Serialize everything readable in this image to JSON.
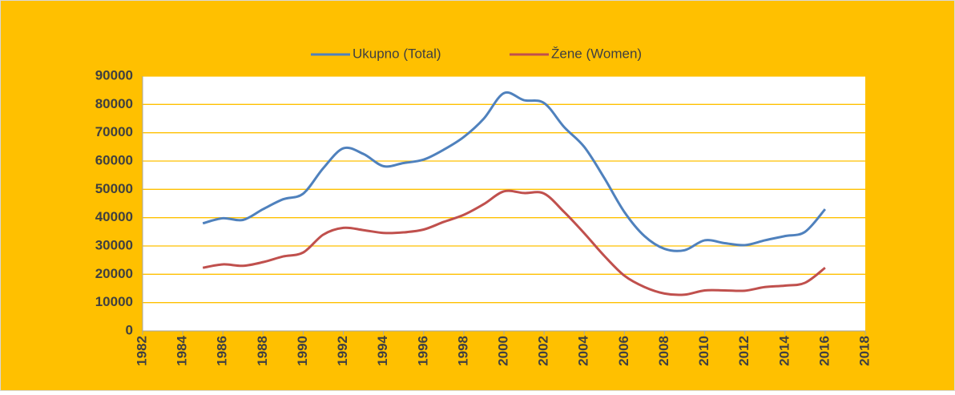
{
  "chart_data": {
    "type": "line",
    "x": [
      1985,
      1986,
      1987,
      1988,
      1989,
      1990,
      1991,
      1992,
      1993,
      1994,
      1995,
      1996,
      1997,
      1998,
      1999,
      2000,
      2001,
      2002,
      2003,
      2004,
      2005,
      2006,
      2007,
      2008,
      2009,
      2010,
      2011,
      2012,
      2013,
      2014,
      2015,
      2016
    ],
    "series": [
      {
        "name": "Ukupno (Total)",
        "color": "#4F81BD",
        "values": [
          38000,
          39800,
          39200,
          43000,
          46500,
          48500,
          57500,
          64500,
          62500,
          58200,
          59300,
          60500,
          64000,
          68500,
          75000,
          84000,
          81500,
          80500,
          72000,
          65000,
          54000,
          42000,
          33500,
          29000,
          28500,
          32000,
          31000,
          30300,
          32000,
          33500,
          35000,
          43000
        ]
      },
      {
        "name": "Žene (Women)",
        "color": "#C0504D",
        "values": [
          22300,
          23500,
          23000,
          24300,
          26300,
          27700,
          34000,
          36400,
          35600,
          34600,
          34800,
          35800,
          38500,
          41000,
          44800,
          49300,
          48700,
          48500,
          42000,
          34500,
          26500,
          19500,
          15500,
          13200,
          12800,
          14300,
          14300,
          14200,
          15500,
          16000,
          17000,
          22300
        ]
      }
    ],
    "xlim": [
      1982,
      2018
    ],
    "xticks": [
      1982,
      1984,
      1986,
      1988,
      1990,
      1992,
      1994,
      1996,
      1998,
      2000,
      2002,
      2004,
      2006,
      2008,
      2010,
      2012,
      2014,
      2016,
      2018
    ],
    "ylim": [
      0,
      90000
    ],
    "yticks": [
      0,
      10000,
      20000,
      30000,
      40000,
      50000,
      60000,
      70000,
      80000,
      90000
    ],
    "grid": true,
    "smooth": true,
    "legend": "top"
  }
}
